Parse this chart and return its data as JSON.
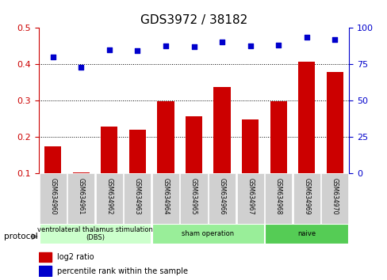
{
  "title": "GDS3972 / 38182",
  "samples": [
    "GSM634960",
    "GSM634961",
    "GSM634962",
    "GSM634963",
    "GSM634964",
    "GSM634965",
    "GSM634966",
    "GSM634967",
    "GSM634968",
    "GSM634969",
    "GSM634970"
  ],
  "log2_ratio": [
    0.175,
    0.103,
    0.23,
    0.22,
    0.298,
    0.258,
    0.338,
    0.248,
    0.298,
    0.408,
    0.38
  ],
  "percentile_rank": [
    0.42,
    0.392,
    0.44,
    0.438,
    0.45,
    0.448,
    0.462,
    0.45,
    0.454,
    0.474,
    0.468
  ],
  "bar_color": "#cc0000",
  "dot_color": "#0000cc",
  "ylim_left": [
    0.1,
    0.5
  ],
  "ylim_right": [
    0,
    100
  ],
  "yticks_left": [
    0.1,
    0.2,
    0.3,
    0.4,
    0.5
  ],
  "yticks_right": [
    0,
    25,
    50,
    75,
    100
  ],
  "groups": [
    {
      "label": "ventrolateral thalamus stimulation\n(DBS)",
      "start": 0,
      "end": 3,
      "color": "#ccffcc"
    },
    {
      "label": "sham operation",
      "start": 4,
      "end": 7,
      "color": "#99ee99"
    },
    {
      "label": "naive",
      "start": 8,
      "end": 10,
      "color": "#55cc55"
    }
  ],
  "legend_bar_label": "log2 ratio",
  "legend_dot_label": "percentile rank within the sample",
  "protocol_label": "protocol",
  "xlabel_color": "#cc0000",
  "right_axis_color": "#0000cc",
  "background_color": "#ffffff",
  "plot_bg_color": "#ffffff"
}
